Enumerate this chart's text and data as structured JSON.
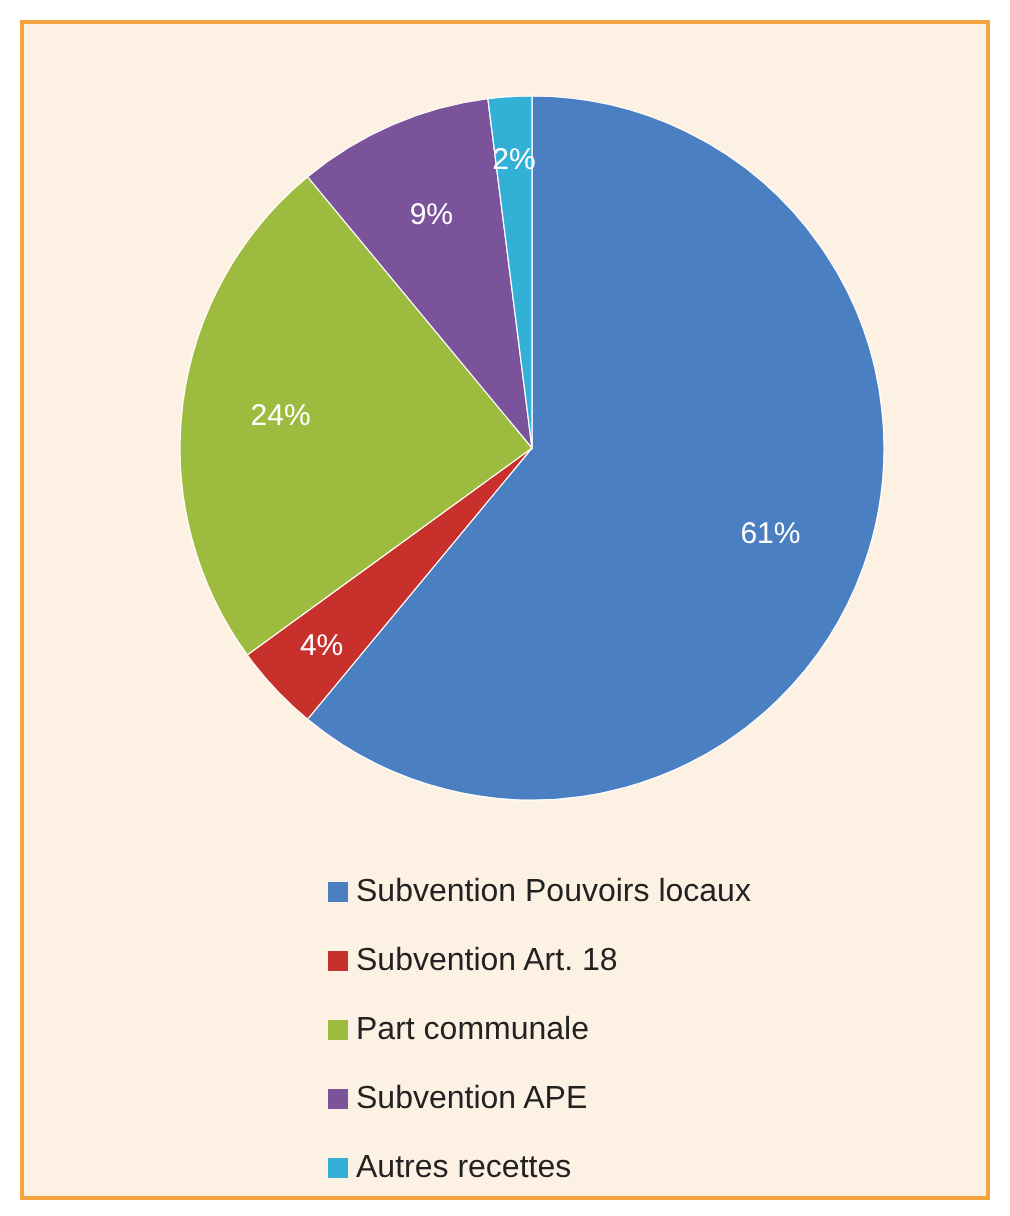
{
  "chart_data": {
    "type": "pie",
    "categories": [
      "Subvention Pouvoirs locaux",
      "Subvention Art. 18",
      "Part communale",
      "Subvention APE",
      "Autres recettes"
    ],
    "values": [
      61,
      4,
      24,
      9,
      2
    ],
    "colors": [
      "#4a7fc1",
      "#c8302c",
      "#9dbb3f",
      "#7a539a",
      "#33b0d6"
    ],
    "value_labels": [
      "61%",
      "4%",
      "24%",
      "9%",
      "2%"
    ],
    "legend": "bottom"
  }
}
